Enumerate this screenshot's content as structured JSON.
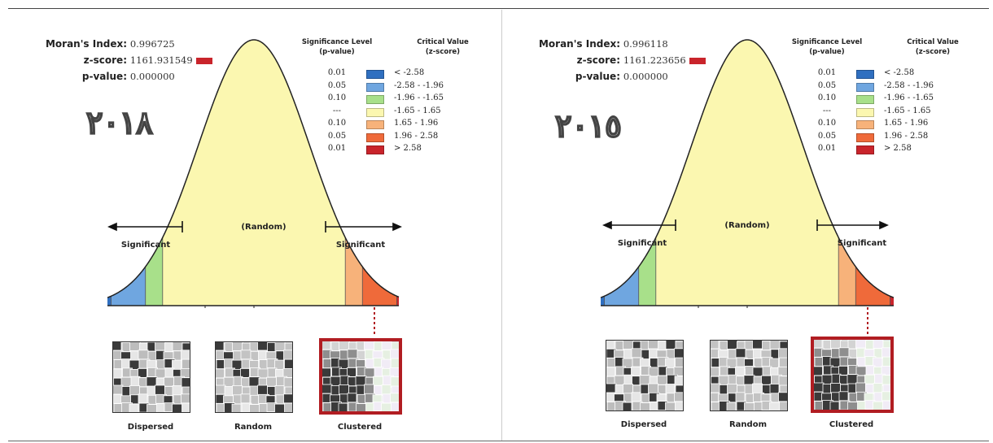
{
  "panels": [
    {
      "id": "2018",
      "year": "٢٠١٨",
      "stats": {
        "moran_label": "Moran's Index:",
        "moran_value": "0.996725",
        "z_label": "z-score:",
        "z_value": "1161.931549",
        "p_label": "p-value:",
        "p_value": "0.000000"
      },
      "legend": {
        "sig_header": "Significance Level\n(p-value)",
        "crit_header": "Critical Value\n(z-score)",
        "rows": [
          {
            "p": "0.01",
            "z": "< -2.58",
            "color": "#2f6fc0"
          },
          {
            "p": "0.05",
            "z": "-2.58 - -1.96",
            "color": "#6fa6e0"
          },
          {
            "p": "0.10",
            "z": "-1.96 - -1.65",
            "color": "#a8e08a"
          },
          {
            "p": "---",
            "z": "-1.65 - 1.65",
            "color": "#fbf7b0"
          },
          {
            "p": "0.10",
            "z": "1.65 - 1.96",
            "color": "#f7b27a"
          },
          {
            "p": "0.05",
            "z": "1.96 - 2.58",
            "color": "#ef6a3a"
          },
          {
            "p": "0.01",
            "z": "> 2.58",
            "color": "#c9242b"
          }
        ]
      },
      "labels": {
        "random": "(Random)",
        "sig_left": "Significant",
        "sig_right": "Significant"
      },
      "thumbs": {
        "dispersed": "Dispersed",
        "random": "Random",
        "clustered": "Clustered"
      }
    },
    {
      "id": "2015",
      "year": "٢٠١٥",
      "stats": {
        "moran_label": "Moran's Index:",
        "moran_value": "0.996118",
        "z_label": "z-score:",
        "z_value": "1161.223656",
        "p_label": "p-value:",
        "p_value": "0.000000"
      },
      "legend": {
        "sig_header": "Significance Level\n(p-value)",
        "crit_header": "Critical Value\n(z-score)",
        "rows": [
          {
            "p": "0.01",
            "z": "< -2.58",
            "color": "#2f6fc0"
          },
          {
            "p": "0.05",
            "z": "-2.58 - -1.96",
            "color": "#6fa6e0"
          },
          {
            "p": "0.10",
            "z": "-1.96 - -1.65",
            "color": "#a8e08a"
          },
          {
            "p": "---",
            "z": "-1.65 - 1.65",
            "color": "#fbf7b0"
          },
          {
            "p": "0.10",
            "z": "1.65 - 1.96",
            "color": "#f7b27a"
          },
          {
            "p": "0.05",
            "z": "1.96 - 2.58",
            "color": "#ef6a3a"
          },
          {
            "p": "0.01",
            "z": "> 2.58",
            "color": "#c9242b"
          }
        ]
      },
      "labels": {
        "random": "(Random)",
        "sig_left": "Significant",
        "sig_right": "Significant"
      },
      "thumbs": {
        "dispersed": "Dispersed",
        "random": "Random",
        "clustered": "Clustered"
      }
    }
  ]
}
